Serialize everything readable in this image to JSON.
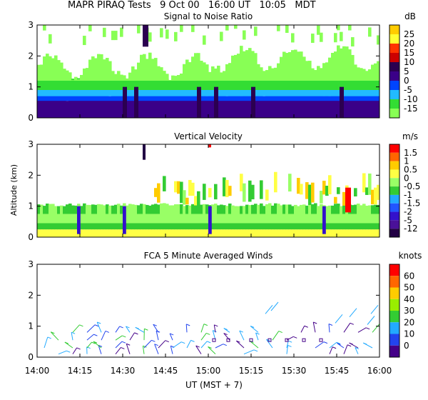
{
  "header": {
    "title": "MAPR PIRAQ Tests   9 Oct 00   16:00 UT   10:05   MDT"
  },
  "xaxis": {
    "label": "UT  (MST + 7)",
    "ticks": [
      "14:00",
      "14:15",
      "14:30",
      "14:45",
      "15:00",
      "15:15",
      "15:30",
      "15:45",
      "16:00"
    ]
  },
  "ylabel": "Altitude (km)",
  "chart_data": [
    {
      "type": "heatmap",
      "title": "Signal to Noise Ratio",
      "units": "dB",
      "xlim": [
        "14:00",
        "16:00"
      ],
      "ylim": [
        0,
        3
      ],
      "yticks": [
        0,
        1,
        2,
        3
      ],
      "colorbar": {
        "labels": [
          "25",
          "20",
          "15",
          "10",
          "5",
          "0",
          "-5",
          "-10",
          "-15"
        ],
        "colors": [
          "#ffcc00",
          "#ffff33",
          "#ff3300",
          "#cc0000",
          "#2b0050",
          "#3a0088",
          "#0044ff",
          "#22bbff",
          "#33dd33",
          "#88ff55"
        ]
      }
    },
    {
      "type": "heatmap",
      "title": "Vertical Velocity",
      "units": "m/s",
      "xlim": [
        "14:00",
        "16:00"
      ],
      "ylim": [
        0,
        3
      ],
      "yticks": [
        0,
        1,
        2,
        3
      ],
      "colorbar": {
        "labels": [
          "1.5",
          "1",
          "0.5",
          "0",
          "-0.5",
          "-1",
          "-1.5",
          "-2",
          "-5",
          "-12"
        ],
        "colors": [
          "#ff0000",
          "#ff6600",
          "#ffcc00",
          "#ffff44",
          "#99ff66",
          "#33cc33",
          "#22aaff",
          "#2255ff",
          "#3311cc",
          "#4a1199",
          "#220044"
        ]
      }
    },
    {
      "type": "scatter",
      "subtype": "wind-barbs",
      "title": "FCA 5 Minute Averaged Winds",
      "units": "knots",
      "xlim": [
        "14:00",
        "16:00"
      ],
      "ylim": [
        0,
        3
      ],
      "yticks": [
        0,
        1,
        2,
        3
      ],
      "colorbar": {
        "labels": [
          "60",
          "50",
          "40",
          "30",
          "20",
          "10",
          "0"
        ],
        "colors": [
          "#ff0000",
          "#ff6600",
          "#ffcc00",
          "#99ee00",
          "#33cc33",
          "#22aaff",
          "#2244ee",
          "#440088"
        ]
      }
    }
  ]
}
